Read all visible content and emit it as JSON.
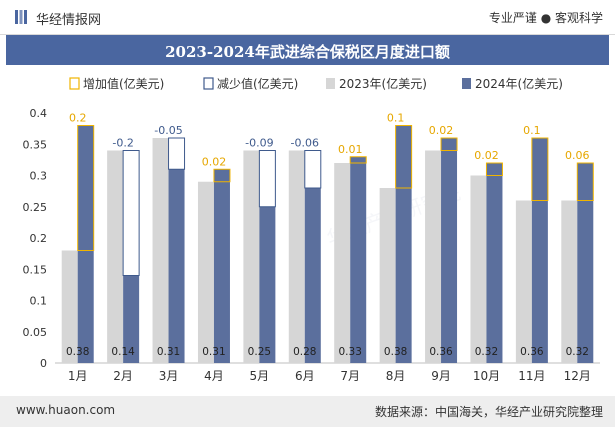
{
  "header": {
    "brand": "华经情报网",
    "tagline": "专业严谨 ● 客观科学"
  },
  "title": "2023-2024年武进综合保税区月度进口额",
  "footer": {
    "website": "www.huaon.com",
    "source": "数据来源：中国海关，华经产业研究院整理"
  },
  "watermark": "华经产业研究院",
  "colors": {
    "increase": "#f0b400",
    "decrease": "#3f5a8c",
    "y2023": "#d6d6d6",
    "y2024": "#5b6f9d",
    "change_label_pos": "#e6a700",
    "change_label_neg": "#3f5a8c",
    "title_bg": "#4a66a0"
  },
  "chart_data": {
    "type": "bar",
    "title": "2023-2024年武进综合保税区月度进口额",
    "categories": [
      "1月",
      "2月",
      "3月",
      "4月",
      "5月",
      "6月",
      "7月",
      "8月",
      "9月",
      "10月",
      "11月",
      "12月"
    ],
    "series": [
      {
        "name": "2023年(亿美元)",
        "values": [
          0.18,
          0.34,
          0.36,
          0.29,
          0.34,
          0.34,
          0.32,
          0.28,
          0.34,
          0.3,
          0.26,
          0.26
        ]
      },
      {
        "name": "2024年(亿美元)",
        "values": [
          0.38,
          0.14,
          0.31,
          0.31,
          0.25,
          0.28,
          0.33,
          0.38,
          0.36,
          0.32,
          0.36,
          0.32
        ]
      }
    ],
    "change": {
      "increase_name": "增加值(亿美元)",
      "decrease_name": "减少值(亿美元)",
      "labels": [
        "0.2",
        "-0.2",
        "-0.05",
        "0.02",
        "-0.09",
        "-0.06",
        "0.01",
        "0.1",
        "0.02",
        "0.02",
        "0.1",
        "0.06"
      ]
    },
    "value_labels_2024": [
      "0.38",
      "0.14",
      "0.31",
      "0.31",
      "0.25",
      "0.28",
      "0.33",
      "0.38",
      "0.36",
      "0.32",
      "0.36",
      "0.32"
    ],
    "yticks": [
      "0",
      "0.05",
      "0.1",
      "0.15",
      "0.2",
      "0.25",
      "0.3",
      "0.35",
      "0.4"
    ],
    "ylim": [
      0,
      0.4
    ],
    "legend_position": "top"
  }
}
